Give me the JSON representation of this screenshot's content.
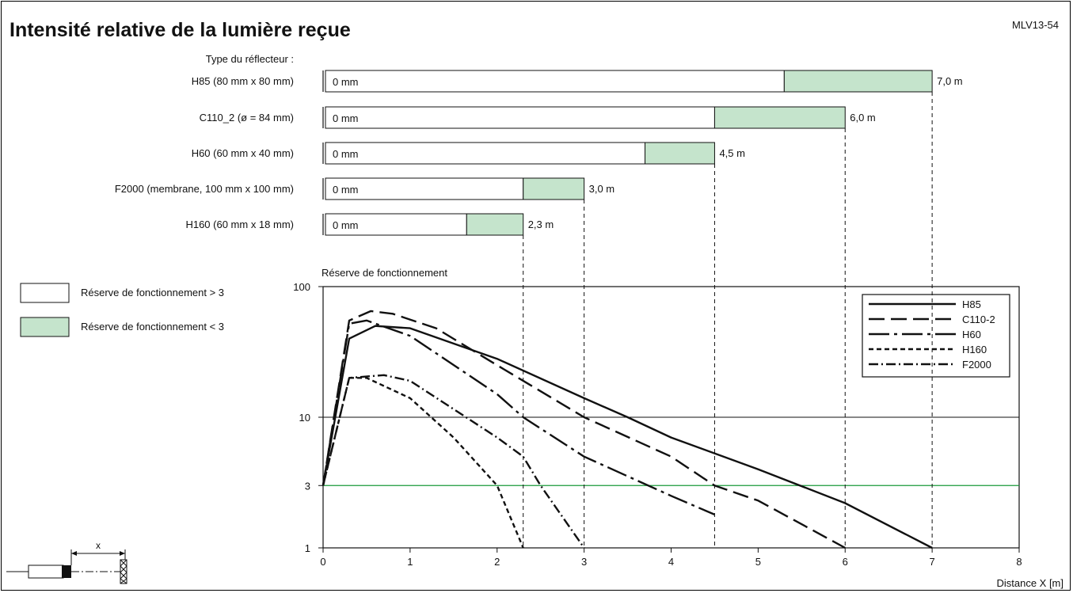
{
  "title": "Intensité relative de la lumière reçue",
  "code": "MLV13-54",
  "reflector_header": "Type du réflecteur :",
  "colors": {
    "reserve_low": "#c5e4cc",
    "threshold_line": "#1a9a3a"
  },
  "legend_boxes": [
    {
      "label": "Réserve de fonctionnement > 3",
      "color": "#ffffff"
    },
    {
      "label": "Réserve de fonctionnement < 3",
      "color": "#c5e4cc"
    }
  ],
  "chart_data": {
    "bar_chart": {
      "type": "bar",
      "orientation": "horizontal",
      "start_label": "0 mm",
      "rows": [
        {
          "label": "H85 (80 mm x 80 mm)",
          "green_start": 5.3,
          "end": 7.0,
          "end_label": "7,0 m"
        },
        {
          "label": "C110_2 (ø = 84 mm)",
          "green_start": 4.5,
          "end": 6.0,
          "end_label": "6,0 m"
        },
        {
          "label": "H60 (60 mm x 40 mm)",
          "green_start": 3.7,
          "end": 4.5,
          "end_label": "4,5 m"
        },
        {
          "label": "F2000 (membrane, 100 mm x 100 mm)",
          "green_start": 2.3,
          "end": 3.0,
          "end_label": "3,0 m"
        },
        {
          "label": "H160 (60 mm x 18 mm)",
          "green_start": 1.65,
          "end": 2.3,
          "end_label": "2,3 m"
        }
      ]
    },
    "line_chart": {
      "type": "line",
      "ylabel": "Réserve de fonctionnement",
      "xlabel": "Distance X [m]",
      "xlim": [
        0,
        8
      ],
      "ylim": [
        1,
        100
      ],
      "yscale": "log",
      "xticks": [
        "0",
        "1",
        "2",
        "3",
        "4",
        "5",
        "6",
        "7",
        "8"
      ],
      "yticks": [
        {
          "value": 1,
          "label": "1"
        },
        {
          "value": 3,
          "label": "3"
        },
        {
          "value": 10,
          "label": "10"
        },
        {
          "value": 100,
          "label": "100"
        }
      ],
      "threshold": 3,
      "legend_position": "top-right",
      "series": [
        {
          "name": "H85",
          "dash": "",
          "points": [
            [
              0,
              3
            ],
            [
              0.3,
              40
            ],
            [
              0.6,
              50
            ],
            [
              1,
              48
            ],
            [
              2,
              28
            ],
            [
              3,
              14
            ],
            [
              3.5,
              10
            ],
            [
              4,
              7
            ],
            [
              5,
              4
            ],
            [
              6,
              2.2
            ],
            [
              7,
              1
            ]
          ]
        },
        {
          "name": "C110-2",
          "dash": "20 8",
          "points": [
            [
              0,
              3
            ],
            [
              0.3,
              55
            ],
            [
              0.55,
              65
            ],
            [
              0.8,
              62
            ],
            [
              1.3,
              48
            ],
            [
              2,
              25
            ],
            [
              3,
              10
            ],
            [
              4,
              5
            ],
            [
              4.5,
              3
            ],
            [
              5,
              2.3
            ],
            [
              6,
              1
            ]
          ]
        },
        {
          "name": "H60",
          "dash": "26 6 4 6",
          "points": [
            [
              0,
              3
            ],
            [
              0.3,
              52
            ],
            [
              0.5,
              55
            ],
            [
              1,
              42
            ],
            [
              2,
              15
            ],
            [
              2.3,
              10
            ],
            [
              3,
              5
            ],
            [
              4,
              2.5
            ],
            [
              4.5,
              1.8
            ]
          ]
        },
        {
          "name": "H160",
          "dash": "6 4",
          "points": [
            [
              0,
              3
            ],
            [
              0.3,
              20
            ],
            [
              0.5,
              20
            ],
            [
              1,
              14
            ],
            [
              1.5,
              7
            ],
            [
              2,
              3
            ],
            [
              2.3,
              1
            ]
          ]
        },
        {
          "name": "F2000",
          "dash": "12 4 2 4",
          "points": [
            [
              0,
              3
            ],
            [
              0.3,
              20
            ],
            [
              0.7,
              21
            ],
            [
              1,
              19
            ],
            [
              2,
              7
            ],
            [
              2.3,
              5
            ],
            [
              2.5,
              3
            ],
            [
              3,
              1
            ]
          ]
        }
      ]
    }
  }
}
